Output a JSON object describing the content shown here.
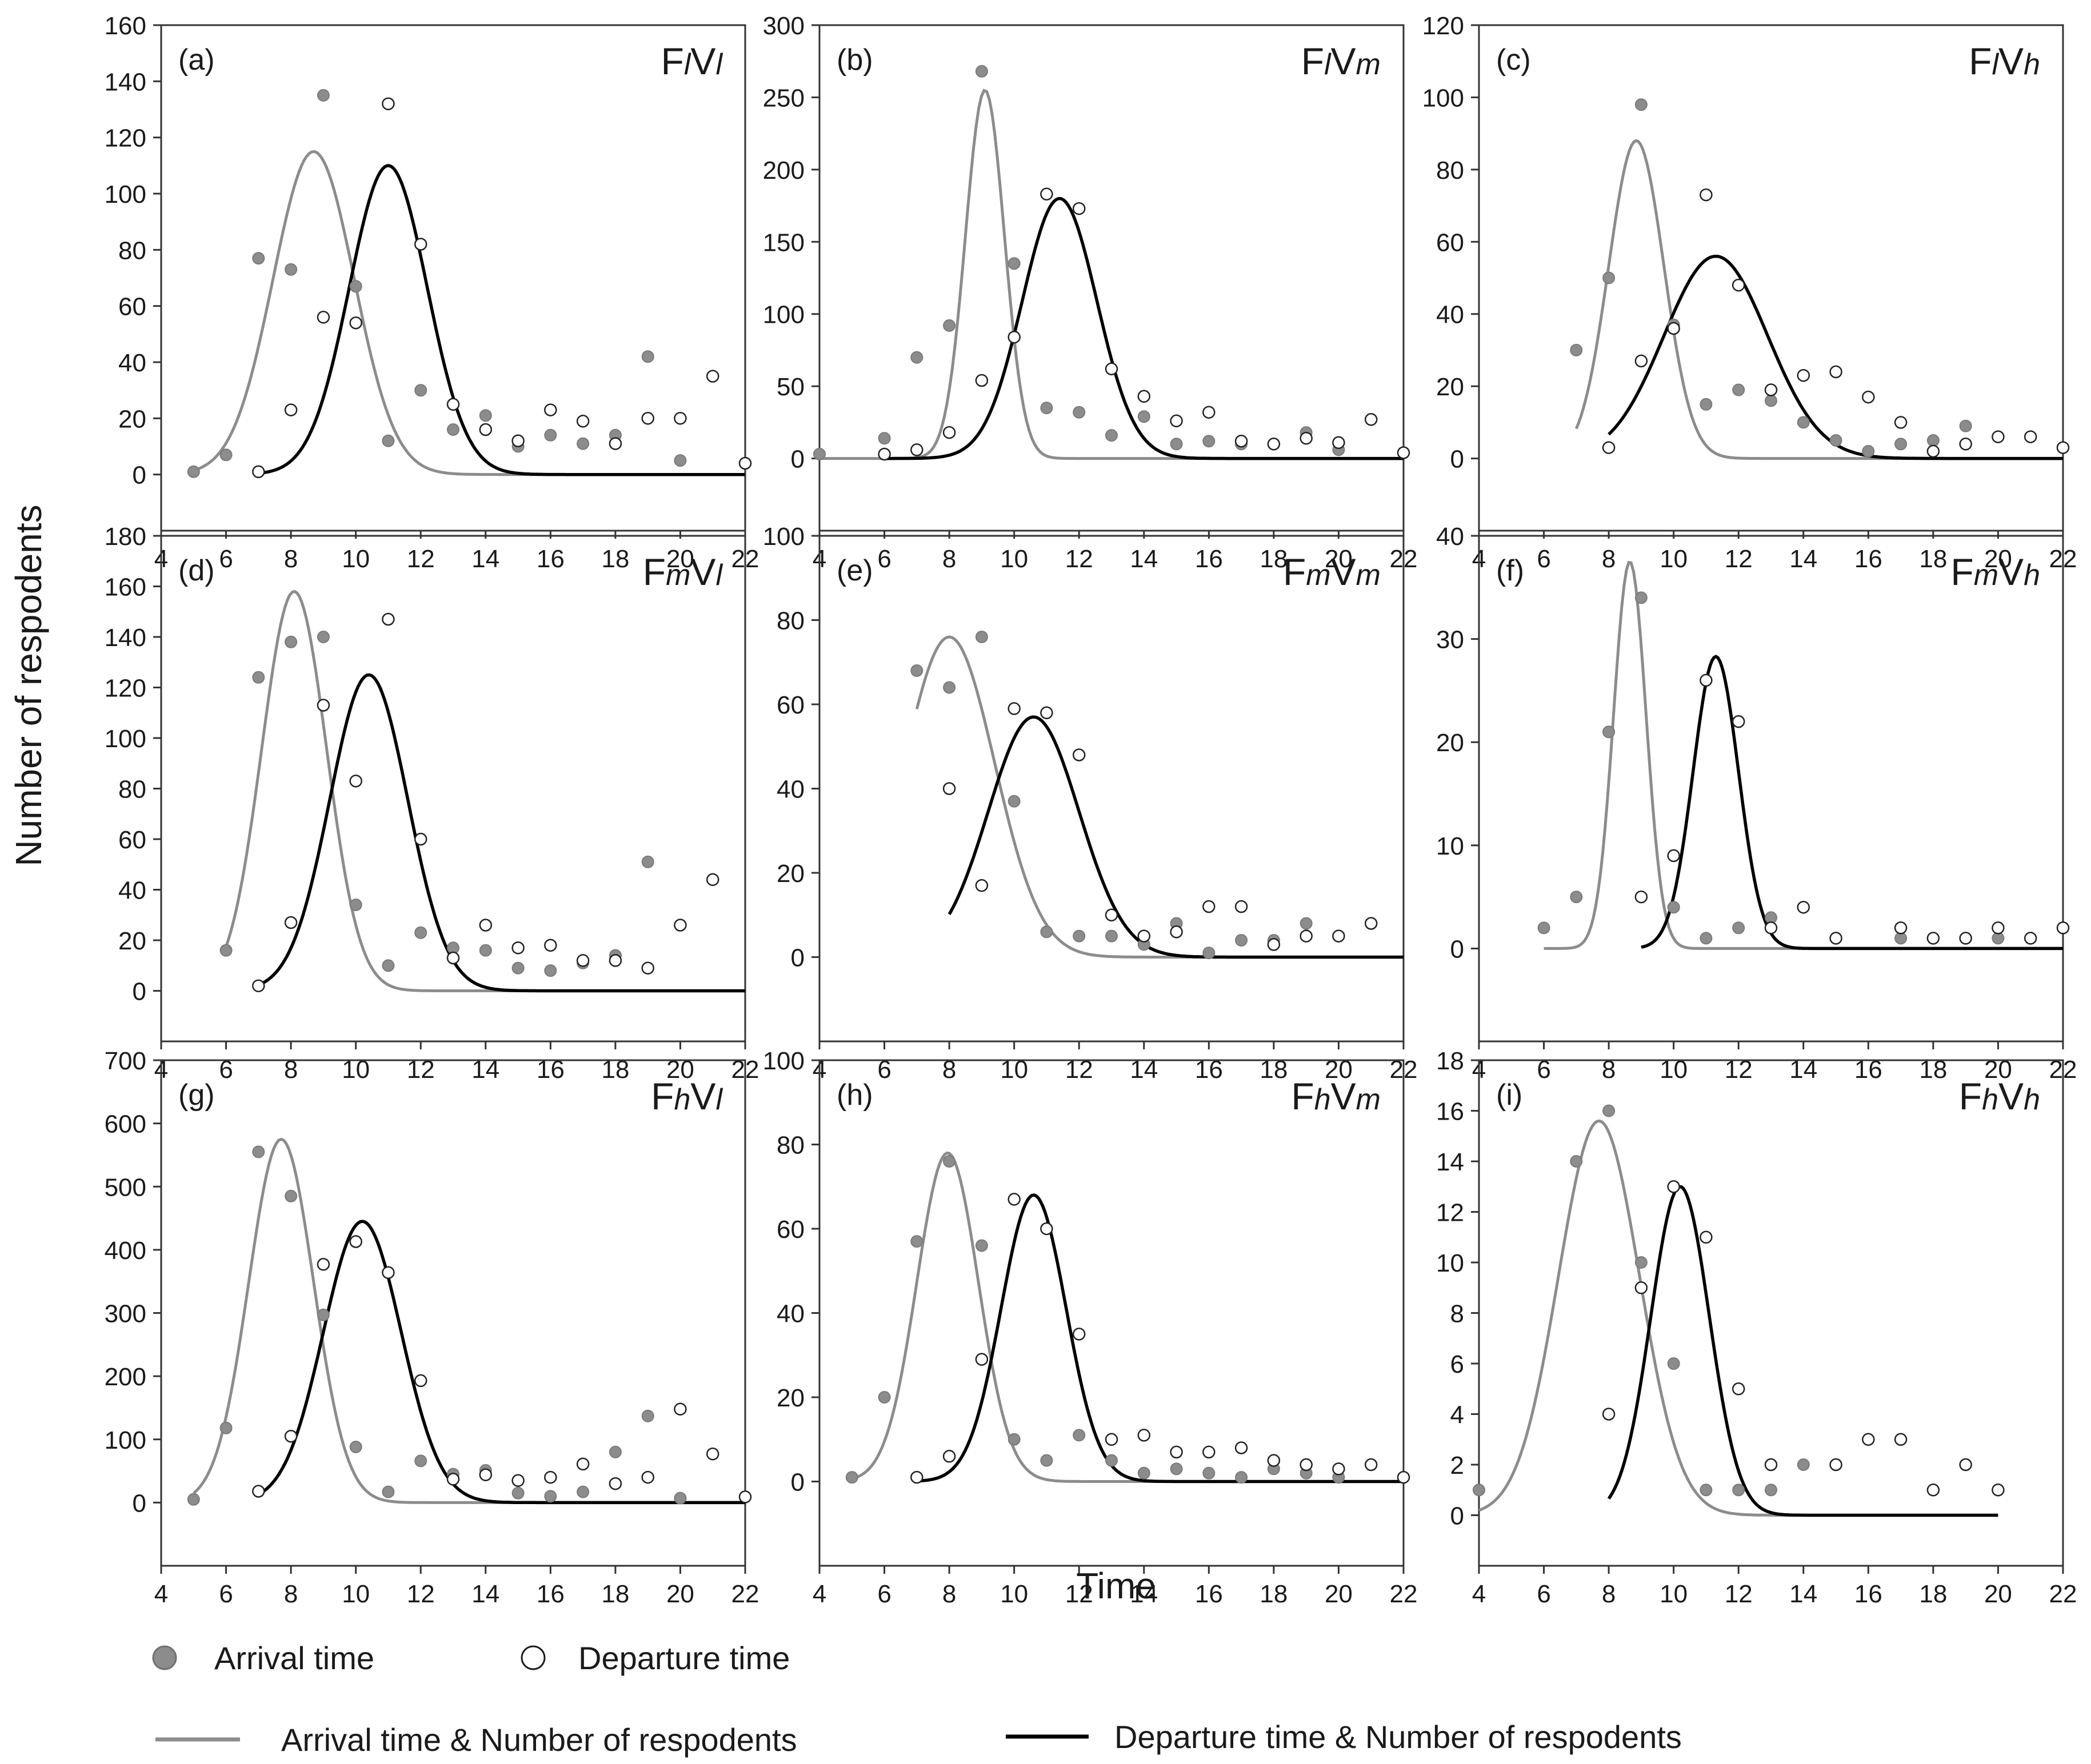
{
  "figure": {
    "xlabel": "Time",
    "ylabel": "Number of respodents"
  },
  "legend": {
    "arrival_points": "Arrival time",
    "departure_points": "Departure time",
    "arrival_curve": "Arrival time & Number of respodents",
    "departure_curve": "Departure time & Number of respodents"
  },
  "colors": {
    "arrival": "#8c8c8c",
    "departure": "#000000",
    "frame": "#333333"
  },
  "chart_data": [
    {
      "type": "scatter",
      "panel": "(a)",
      "code": [
        "F",
        "l",
        "V",
        "l"
      ],
      "xlim": [
        4,
        22
      ],
      "xticks": [
        4,
        6,
        8,
        10,
        12,
        14,
        16,
        18,
        20,
        22
      ],
      "ylim": [
        -20,
        160
      ],
      "yticks": [
        0,
        20,
        40,
        60,
        80,
        100,
        120,
        140,
        160
      ],
      "series": [
        {
          "name": "Arrival time",
          "x": [
            5,
            6,
            7,
            8,
            9,
            10,
            11,
            12,
            13,
            14,
            15,
            16,
            17,
            18,
            19,
            20
          ],
          "y": [
            1,
            7,
            77,
            73,
            135,
            67,
            12,
            30,
            16,
            21,
            10,
            14,
            11,
            14,
            42,
            5
          ]
        },
        {
          "name": "Departure time",
          "x": [
            7,
            8,
            9,
            10,
            11,
            12,
            13,
            14,
            15,
            16,
            17,
            18,
            19,
            20,
            21,
            22
          ],
          "y": [
            1,
            23,
            56,
            54,
            132,
            82,
            25,
            16,
            12,
            23,
            19,
            11,
            20,
            20,
            35,
            4
          ]
        }
      ],
      "curves": [
        {
          "name": "Arrival time & Number of respodents",
          "amplitude": 115,
          "mean": 8.7,
          "sd": 1.25,
          "xrange": [
            5,
            22
          ]
        },
        {
          "name": "Departure time & Number of respodents",
          "amplitude": 110,
          "mean": 11.0,
          "sd": 1.2,
          "xrange": [
            7,
            22
          ]
        }
      ]
    },
    {
      "type": "scatter",
      "panel": "(b)",
      "code": [
        "F",
        "l",
        "V",
        "m"
      ],
      "xlim": [
        4,
        22
      ],
      "xticks": [
        4,
        6,
        8,
        10,
        12,
        14,
        16,
        18,
        20,
        22
      ],
      "ylim": [
        -50,
        300
      ],
      "yticks": [
        0,
        50,
        100,
        150,
        200,
        250,
        300
      ],
      "series": [
        {
          "name": "Arrival time",
          "x": [
            4,
            6,
            7,
            8,
            9,
            10,
            11,
            12,
            13,
            14,
            15,
            16,
            17,
            18,
            19,
            20
          ],
          "y": [
            3,
            14,
            70,
            92,
            268,
            135,
            35,
            32,
            16,
            29,
            10,
            12,
            10,
            10,
            18,
            6
          ]
        },
        {
          "name": "Departure time",
          "x": [
            6,
            7,
            8,
            9,
            10,
            11,
            12,
            13,
            14,
            15,
            16,
            17,
            18,
            19,
            20,
            21,
            22
          ],
          "y": [
            3,
            6,
            18,
            54,
            84,
            183,
            173,
            62,
            43,
            26,
            32,
            12,
            10,
            14,
            11,
            27,
            4
          ]
        }
      ],
      "curves": [
        {
          "name": "Arrival time & Number of respodents",
          "amplitude": 255,
          "mean": 9.1,
          "sd": 0.6,
          "xrange": [
            4,
            22
          ]
        },
        {
          "name": "Departure time & Number of respodents",
          "amplitude": 180,
          "mean": 11.4,
          "sd": 1.15,
          "xrange": [
            6,
            22
          ]
        }
      ]
    },
    {
      "type": "scatter",
      "panel": "(c)",
      "code": [
        "F",
        "l",
        "V",
        "h"
      ],
      "xlim": [
        4,
        22
      ],
      "xticks": [
        4,
        6,
        8,
        10,
        12,
        14,
        16,
        18,
        20,
        22
      ],
      "ylim": [
        -20,
        120
      ],
      "yticks": [
        0,
        20,
        40,
        60,
        80,
        100,
        120
      ],
      "series": [
        {
          "name": "Arrival time",
          "x": [
            7,
            8,
            9,
            10,
            11,
            12,
            13,
            14,
            15,
            16,
            17,
            18,
            19
          ],
          "y": [
            30,
            50,
            98,
            37,
            15,
            19,
            16,
            10,
            5,
            2,
            4,
            5,
            9
          ]
        },
        {
          "name": "Departure time",
          "x": [
            8,
            9,
            10,
            11,
            12,
            13,
            14,
            15,
            16,
            17,
            18,
            19,
            20,
            21,
            22
          ],
          "y": [
            3,
            27,
            36,
            73,
            48,
            19,
            23,
            24,
            17,
            10,
            2,
            4,
            6,
            6,
            3
          ]
        }
      ],
      "curves": [
        {
          "name": "Arrival time & Number of respodents",
          "amplitude": 88,
          "mean": 8.85,
          "sd": 0.85,
          "xrange": [
            7,
            22
          ]
        },
        {
          "name": "Departure time & Number of respodents",
          "amplitude": 56,
          "mean": 11.3,
          "sd": 1.6,
          "xrange": [
            8,
            22
          ]
        }
      ]
    },
    {
      "type": "scatter",
      "panel": "(d)",
      "code": [
        "F",
        "m",
        "V",
        "l"
      ],
      "xlim": [
        4,
        22
      ],
      "xticks": [
        4,
        6,
        8,
        10,
        12,
        14,
        16,
        18,
        20,
        22
      ],
      "ylim": [
        -20,
        180
      ],
      "yticks": [
        0,
        20,
        40,
        60,
        80,
        100,
        120,
        140,
        160,
        180
      ],
      "series": [
        {
          "name": "Arrival time",
          "x": [
            6,
            7,
            8,
            9,
            10,
            11,
            12,
            13,
            14,
            15,
            16,
            17,
            18,
            19
          ],
          "y": [
            16,
            124,
            138,
            140,
            34,
            10,
            23,
            17,
            16,
            9,
            8,
            11,
            14,
            51
          ]
        },
        {
          "name": "Departure time",
          "x": [
            7,
            8,
            9,
            10,
            11,
            12,
            13,
            14,
            15,
            16,
            17,
            18,
            19,
            20,
            21
          ],
          "y": [
            2,
            27,
            113,
            83,
            147,
            60,
            13,
            26,
            17,
            18,
            12,
            12,
            9,
            26,
            44
          ]
        }
      ],
      "curves": [
        {
          "name": "Arrival time & Number of respodents",
          "amplitude": 158,
          "mean": 8.1,
          "sd": 1.0,
          "xrange": [
            6,
            22
          ]
        },
        {
          "name": "Departure time & Number of respodents",
          "amplitude": 125,
          "mean": 10.4,
          "sd": 1.2,
          "xrange": [
            7,
            22
          ]
        }
      ]
    },
    {
      "type": "scatter",
      "panel": "(e)",
      "code": [
        "F",
        "m",
        "V",
        "m"
      ],
      "xlim": [
        4,
        22
      ],
      "xticks": [
        4,
        6,
        8,
        10,
        12,
        14,
        16,
        18,
        20,
        22
      ],
      "ylim": [
        -20,
        100
      ],
      "yticks": [
        0,
        20,
        40,
        60,
        80,
        100
      ],
      "series": [
        {
          "name": "Arrival time",
          "x": [
            7,
            8,
            9,
            10,
            11,
            12,
            13,
            14,
            15,
            16,
            17,
            18,
            19
          ],
          "y": [
            68,
            64,
            76,
            37,
            6,
            5,
            5,
            3,
            8,
            1,
            4,
            4,
            8
          ]
        },
        {
          "name": "Departure time",
          "x": [
            8,
            9,
            10,
            11,
            12,
            13,
            14,
            15,
            16,
            17,
            18,
            19,
            20,
            21
          ],
          "y": [
            40,
            17,
            59,
            58,
            48,
            10,
            5,
            6,
            12,
            12,
            3,
            5,
            5,
            8
          ]
        }
      ],
      "curves": [
        {
          "name": "Arrival time & Number of respodents",
          "amplitude": 76,
          "mean": 8.0,
          "sd": 1.4,
          "xrange": [
            7,
            22
          ]
        },
        {
          "name": "Departure time & Number of respodents",
          "amplitude": 57,
          "mean": 10.6,
          "sd": 1.4,
          "xrange": [
            8,
            22
          ]
        }
      ]
    },
    {
      "type": "scatter",
      "panel": "(f)",
      "code": [
        "F",
        "m",
        "V",
        "h"
      ],
      "xlim": [
        4,
        22
      ],
      "xticks": [
        4,
        6,
        8,
        10,
        12,
        14,
        16,
        18,
        20,
        22
      ],
      "ylim": [
        -9,
        40
      ],
      "yticks": [
        0,
        10,
        20,
        30,
        40
      ],
      "series": [
        {
          "name": "Arrival time",
          "x": [
            6,
            7,
            8,
            9,
            10,
            11,
            12,
            13,
            17,
            18,
            19,
            20
          ],
          "y": [
            2,
            5,
            21,
            34,
            4,
            1,
            2,
            3,
            1,
            1,
            1,
            1
          ]
        },
        {
          "name": "Departure time",
          "x": [
            9,
            10,
            11,
            12,
            13,
            14,
            15,
            17,
            18,
            19,
            20,
            21,
            22
          ],
          "y": [
            5,
            9,
            26,
            22,
            2,
            4,
            1,
            2,
            1,
            1,
            2,
            1,
            2
          ]
        }
      ],
      "curves": [
        {
          "name": "Arrival time & Number of respodents",
          "amplitude": 37.5,
          "mean": 8.65,
          "sd": 0.5,
          "xrange": [
            6,
            22
          ]
        },
        {
          "name": "Departure time & Number of respodents",
          "amplitude": 28.3,
          "mean": 11.3,
          "sd": 0.7,
          "xrange": [
            9,
            22
          ]
        }
      ]
    },
    {
      "type": "scatter",
      "panel": "(g)",
      "code": [
        "F",
        "h",
        "V",
        "l"
      ],
      "xlim": [
        4,
        22
      ],
      "xticks": [
        4,
        6,
        8,
        10,
        12,
        14,
        16,
        18,
        20,
        22
      ],
      "ylim": [
        -100,
        700
      ],
      "yticks": [
        0,
        100,
        200,
        300,
        400,
        500,
        600,
        700
      ],
      "series": [
        {
          "name": "Arrival time",
          "x": [
            5,
            6,
            7,
            8,
            9,
            10,
            11,
            12,
            13,
            14,
            15,
            16,
            17,
            18,
            19,
            20
          ],
          "y": [
            5,
            118,
            555,
            485,
            297,
            88,
            17,
            66,
            45,
            51,
            15,
            10,
            17,
            80,
            137,
            7
          ]
        },
        {
          "name": "Departure time",
          "x": [
            7,
            8,
            9,
            10,
            11,
            12,
            13,
            14,
            15,
            16,
            17,
            18,
            19,
            20,
            21,
            22
          ],
          "y": [
            18,
            105,
            377,
            413,
            364,
            193,
            37,
            44,
            35,
            40,
            61,
            30,
            40,
            148,
            77,
            9
          ]
        }
      ],
      "curves": [
        {
          "name": "Arrival time & Number of respodents",
          "amplitude": 575,
          "mean": 7.7,
          "sd": 1.0,
          "xrange": [
            5,
            22
          ]
        },
        {
          "name": "Departure time & Number of respodents",
          "amplitude": 445,
          "mean": 10.2,
          "sd": 1.2,
          "xrange": [
            7,
            22
          ]
        }
      ]
    },
    {
      "type": "scatter",
      "panel": "(h)",
      "code": [
        "F",
        "h",
        "V",
        "m"
      ],
      "xlim": [
        4,
        22
      ],
      "xticks": [
        4,
        6,
        8,
        10,
        12,
        14,
        16,
        18,
        20,
        22
      ],
      "ylim": [
        -20,
        100
      ],
      "yticks": [
        0,
        20,
        40,
        60,
        80,
        100
      ],
      "series": [
        {
          "name": "Arrival time",
          "x": [
            5,
            6,
            7,
            8,
            9,
            10,
            11,
            12,
            13,
            14,
            15,
            16,
            17,
            18,
            19,
            20
          ],
          "y": [
            1,
            20,
            57,
            76,
            56,
            10,
            5,
            11,
            5,
            2,
            3,
            2,
            1,
            3,
            2,
            1
          ]
        },
        {
          "name": "Departure time",
          "x": [
            7,
            8,
            9,
            10,
            11,
            12,
            13,
            14,
            15,
            16,
            17,
            18,
            19,
            20,
            21,
            22
          ],
          "y": [
            1,
            6,
            29,
            67,
            60,
            35,
            10,
            11,
            7,
            7,
            8,
            5,
            4,
            3,
            4,
            1
          ]
        }
      ],
      "curves": [
        {
          "name": "Arrival time & Number of respodents",
          "amplitude": 78,
          "mean": 7.95,
          "sd": 0.95,
          "xrange": [
            5,
            22
          ]
        },
        {
          "name": "Departure time & Number of respodents",
          "amplitude": 68,
          "mean": 10.6,
          "sd": 1.0,
          "xrange": [
            7,
            22
          ]
        }
      ]
    },
    {
      "type": "scatter",
      "panel": "(i)",
      "code": [
        "F",
        "h",
        "V",
        "h"
      ],
      "xlim": [
        4,
        22
      ],
      "xticks": [
        4,
        6,
        8,
        10,
        12,
        14,
        16,
        18,
        20,
        22
      ],
      "ylim": [
        -2,
        18
      ],
      "yticks": [
        0,
        2,
        4,
        6,
        8,
        10,
        12,
        14,
        16,
        18
      ],
      "series": [
        {
          "name": "Arrival time",
          "x": [
            4,
            7,
            8,
            9,
            10,
            11,
            12,
            13,
            14
          ],
          "y": [
            1,
            14,
            16,
            10,
            6,
            1,
            1,
            1,
            2
          ]
        },
        {
          "name": "Departure time",
          "x": [
            8,
            9,
            10,
            11,
            12,
            13,
            15,
            16,
            17,
            18,
            19,
            20
          ],
          "y": [
            4,
            9,
            13,
            11,
            5,
            2,
            2,
            3,
            3,
            1,
            2,
            1
          ]
        }
      ],
      "curves": [
        {
          "name": "Arrival time & Number of respodents",
          "amplitude": 15.6,
          "mean": 7.7,
          "sd": 1.25,
          "xrange": [
            4,
            20
          ]
        },
        {
          "name": "Departure time & Number of respodents",
          "amplitude": 13,
          "mean": 10.2,
          "sd": 0.9,
          "xrange": [
            8,
            20
          ]
        }
      ]
    }
  ]
}
